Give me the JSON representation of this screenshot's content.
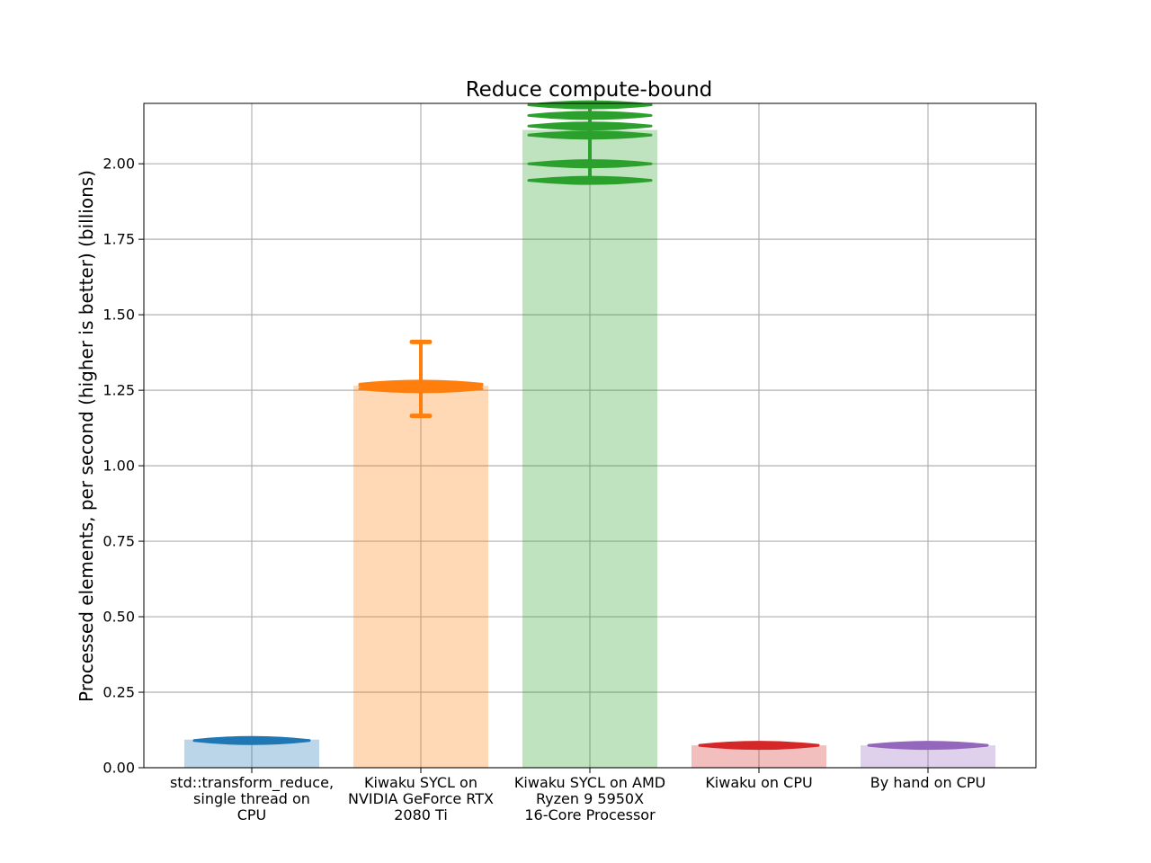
{
  "chart_data": {
    "type": "bar",
    "title": "Reduce compute-bound",
    "xlabel": "",
    "ylabel": "Processed elements, per second (higher is better) (billions)",
    "ylim": [
      0,
      2.2
    ],
    "yticks": [
      "0.00",
      "0.25",
      "0.50",
      "0.75",
      "1.00",
      "1.25",
      "1.50",
      "1.75",
      "2.00"
    ],
    "grid": true,
    "categories": [
      [
        "std::transform_reduce,",
        "single thread on",
        "CPU"
      ],
      [
        "Kiwaku SYCL on",
        "NVIDIA GeForce RTX",
        "2080 Ti"
      ],
      [
        "Kiwaku SYCL on AMD",
        "Ryzen 9 5950X",
        "16-Core Processor"
      ],
      [
        "Kiwaku on CPU"
      ],
      [
        "By hand on CPU"
      ]
    ],
    "values": [
      0.093,
      1.265,
      2.112,
      0.074,
      0.074
    ],
    "colors": [
      "#1f77b4",
      "#ff7f0e",
      "#2ca02c",
      "#d62728",
      "#9467bd"
    ],
    "violins": [
      {
        "min": 0.09,
        "max": 0.091,
        "samples": [
          0.09
        ]
      },
      {
        "min": 1.165,
        "max": 1.41,
        "samples": [
          1.255,
          1.265,
          1.27
        ]
      },
      {
        "min": 1.945,
        "max": 2.195,
        "samples": [
          1.945,
          2.0,
          2.095,
          2.125,
          2.16,
          2.195
        ]
      },
      {
        "min": 0.074,
        "max": 0.075,
        "samples": [
          0.074
        ]
      },
      {
        "min": 0.074,
        "max": 0.075,
        "samples": [
          0.074
        ]
      }
    ]
  }
}
